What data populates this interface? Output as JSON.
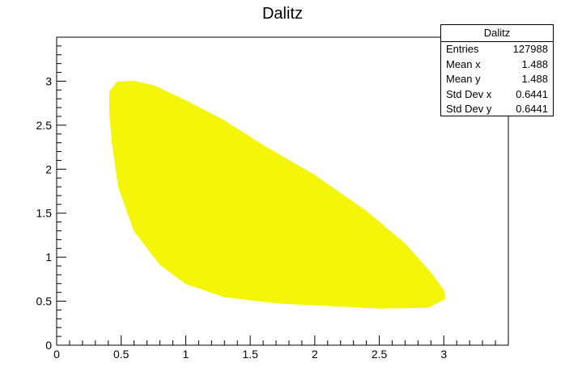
{
  "chart_data": {
    "type": "heatmap",
    "title": "Dalitz",
    "xlim": [
      0,
      3.5
    ],
    "ylim": [
      0,
      3.5
    ],
    "x_ticks": [
      "0",
      "0.5",
      "1",
      "1.5",
      "2",
      "2.5",
      "3"
    ],
    "y_ticks": [
      "0",
      "0.5",
      "1",
      "1.5",
      "2",
      "2.5",
      "3"
    ],
    "fill_color": "#f5f50a",
    "region_boundary": [
      [
        0.41,
        2.88
      ],
      [
        0.47,
        2.99
      ],
      [
        0.6,
        3.0
      ],
      [
        0.75,
        2.95
      ],
      [
        1.0,
        2.78
      ],
      [
        1.3,
        2.55
      ],
      [
        1.6,
        2.27
      ],
      [
        2.0,
        1.93
      ],
      [
        2.4,
        1.52
      ],
      [
        2.7,
        1.15
      ],
      [
        2.9,
        0.82
      ],
      [
        3.0,
        0.62
      ],
      [
        3.01,
        0.53
      ],
      [
        2.88,
        0.43
      ],
      [
        2.5,
        0.42
      ],
      [
        2.1,
        0.45
      ],
      [
        1.7,
        0.48
      ],
      [
        1.3,
        0.55
      ],
      [
        1.0,
        0.7
      ],
      [
        0.8,
        0.92
      ],
      [
        0.6,
        1.3
      ],
      [
        0.48,
        1.8
      ],
      [
        0.43,
        2.3
      ],
      [
        0.41,
        2.65
      ],
      [
        0.41,
        2.88
      ]
    ]
  },
  "stats_box": {
    "title": "Dalitz",
    "rows": [
      {
        "label": "Entries",
        "value": "127988"
      },
      {
        "label": "Mean x",
        "value": "1.488"
      },
      {
        "label": "Mean y",
        "value": "1.488"
      },
      {
        "label": "Std Dev x",
        "value": "0.6441"
      },
      {
        "label": "Std Dev y",
        "value": "0.6441"
      }
    ]
  }
}
